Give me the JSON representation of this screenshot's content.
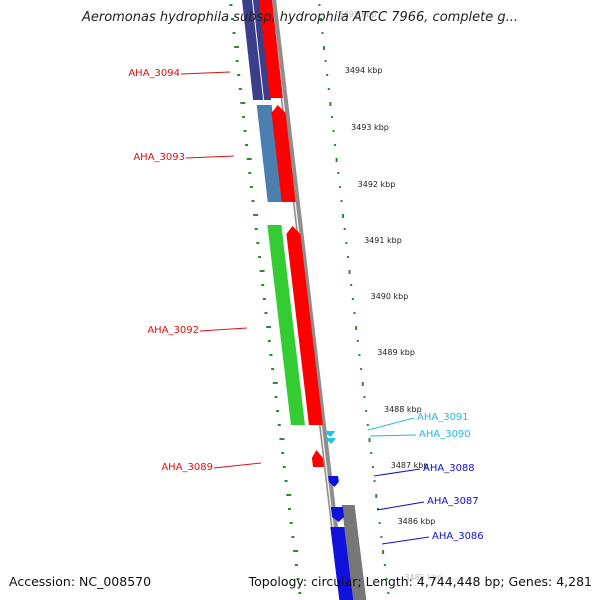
{
  "title": "Aeromonas hydrophila subsp. hydrophila ATCC 7966, complete g...",
  "footer": {
    "accession": "Accession: NC_008570",
    "topology": "Topology: circular; Length: 4,744,448 bp; Genes: 4,281"
  },
  "colors": {
    "backbone": "#8e8e8e",
    "ticks": "#2e8b2e",
    "forward_gene": "#ff0000",
    "reverse_gene_cyan": "#22c4e4",
    "reverse_gene_blue": "#1111dd",
    "label_red": "#dd1111",
    "label_cyan": "#22bbdd",
    "label_blue": "#1111cc",
    "cog_blue": "#4a7fb0",
    "cog_navy": "#3b3f8a",
    "cog_green": "#33cc33",
    "cog_gray": "#777777"
  },
  "kbp_ticks": [
    {
      "label": "3495 kbp",
      "faded": true
    },
    {
      "label": "3494 kbp"
    },
    {
      "label": "3493 kbp"
    },
    {
      "label": "3492 kbp"
    },
    {
      "label": "3491 kbp"
    },
    {
      "label": "3490 kbp"
    },
    {
      "label": "3489 kbp"
    },
    {
      "label": "3488 kbp"
    },
    {
      "label": "3487 kbp"
    },
    {
      "label": "3486 kbp"
    },
    {
      "label": "3485 kbp",
      "faded": true
    }
  ],
  "genes": [
    {
      "label": "AHA_3094",
      "strand": "forward",
      "color": "#dd1111",
      "cog_color": "#3b3f8a"
    },
    {
      "label": "AHA_3093",
      "strand": "forward",
      "color": "#dd1111",
      "cog_color": "#4a7fb0"
    },
    {
      "label": "AHA_3092",
      "strand": "forward",
      "color": "#dd1111",
      "cog_color": "#33cc33"
    },
    {
      "label": "AHA_3089",
      "strand": "forward",
      "color": "#dd1111",
      "cog_color": null
    },
    {
      "label": "AHA_3091",
      "strand": "reverse",
      "color": "#22bbdd",
      "cog_color": null
    },
    {
      "label": "AHA_3090",
      "strand": "reverse",
      "color": "#22bbdd",
      "cog_color": null
    },
    {
      "label": "AHA_3088",
      "strand": "reverse",
      "color": "#1111cc",
      "cog_color": null
    },
    {
      "label": "AHA_3087",
      "strand": "reverse",
      "color": "#1111cc",
      "cog_color": "#777777"
    },
    {
      "label": "AHA_3086",
      "strand": "reverse",
      "color": "#1111cc",
      "cog_color": "#777777"
    }
  ]
}
